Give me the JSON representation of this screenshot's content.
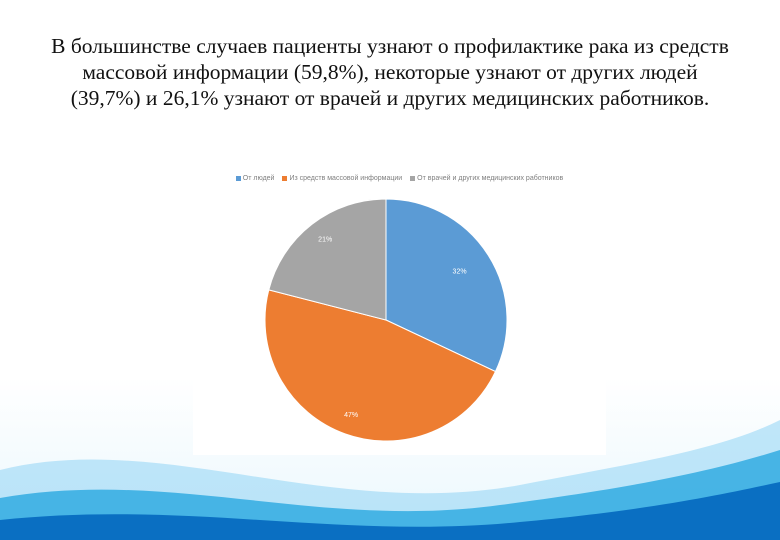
{
  "slide": {
    "title": "В большинстве случаев пациенты узнают о профилактике рака из средств массовой информации (59,8%), некоторые узнают от других людей (39,7%) и 26,1% узнают от врачей и других медицинских работников."
  },
  "colors": {
    "series_blue": "#5b9bd5",
    "series_orange": "#ed7d31",
    "series_gray": "#a5a5a5",
    "wave_light": "#8fd3f4",
    "wave_mid": "#29a8e0",
    "wave_dark": "#0a6fc2"
  },
  "chart_data": {
    "type": "pie",
    "legend_position": "top",
    "categories": [
      "От людей",
      "Из средств массовой информации",
      "От врачей и других медицинских работников"
    ],
    "values": [
      32,
      47,
      21
    ],
    "data_labels": [
      "32%",
      "47%",
      "21%"
    ]
  }
}
